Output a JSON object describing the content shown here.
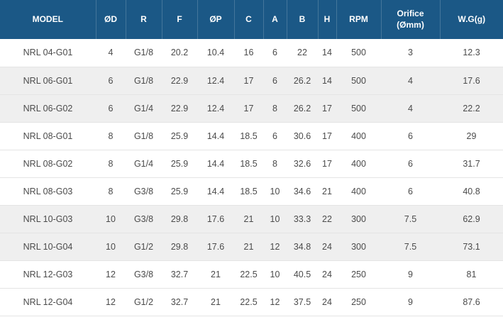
{
  "accent_color": "#1b5886",
  "shaded_row_color": "#efefef",
  "chart_data": {
    "type": "table",
    "columns": [
      "MODEL",
      "ØD",
      "R",
      "F",
      "ØP",
      "C",
      "A",
      "B",
      "H",
      "RPM",
      "Orifice (Ømm)",
      "W.G(g)"
    ],
    "rows": [
      [
        "NRL 04-G01",
        "4",
        "G1/8",
        "20.2",
        "10.4",
        "16",
        "6",
        "22",
        "14",
        "500",
        "3",
        "12.3"
      ],
      [
        "NRL 06-G01",
        "6",
        "G1/8",
        "22.9",
        "12.4",
        "17",
        "6",
        "26.2",
        "14",
        "500",
        "4",
        "17.6"
      ],
      [
        "NRL 06-G02",
        "6",
        "G1/4",
        "22.9",
        "12.4",
        "17",
        "8",
        "26.2",
        "17",
        "500",
        "4",
        "22.2"
      ],
      [
        "NRL 08-G01",
        "8",
        "G1/8",
        "25.9",
        "14.4",
        "18.5",
        "6",
        "30.6",
        "17",
        "400",
        "6",
        "29"
      ],
      [
        "NRL 08-G02",
        "8",
        "G1/4",
        "25.9",
        "14.4",
        "18.5",
        "8",
        "32.6",
        "17",
        "400",
        "6",
        "31.7"
      ],
      [
        "NRL 08-G03",
        "8",
        "G3/8",
        "25.9",
        "14.4",
        "18.5",
        "10",
        "34.6",
        "21",
        "400",
        "6",
        "40.8"
      ],
      [
        "NRL 10-G03",
        "10",
        "G3/8",
        "29.8",
        "17.6",
        "21",
        "10",
        "33.3",
        "22",
        "300",
        "7.5",
        "62.9"
      ],
      [
        "NRL 10-G04",
        "10",
        "G1/2",
        "29.8",
        "17.6",
        "21",
        "12",
        "34.8",
        "24",
        "300",
        "7.5",
        "73.1"
      ],
      [
        "NRL 12-G03",
        "12",
        "G3/8",
        "32.7",
        "21",
        "22.5",
        "10",
        "40.5",
        "24",
        "250",
        "9",
        "81"
      ],
      [
        "NRL 12-G04",
        "12",
        "G1/2",
        "32.7",
        "21",
        "22.5",
        "12",
        "37.5",
        "24",
        "250",
        "9",
        "87.6"
      ]
    ]
  }
}
